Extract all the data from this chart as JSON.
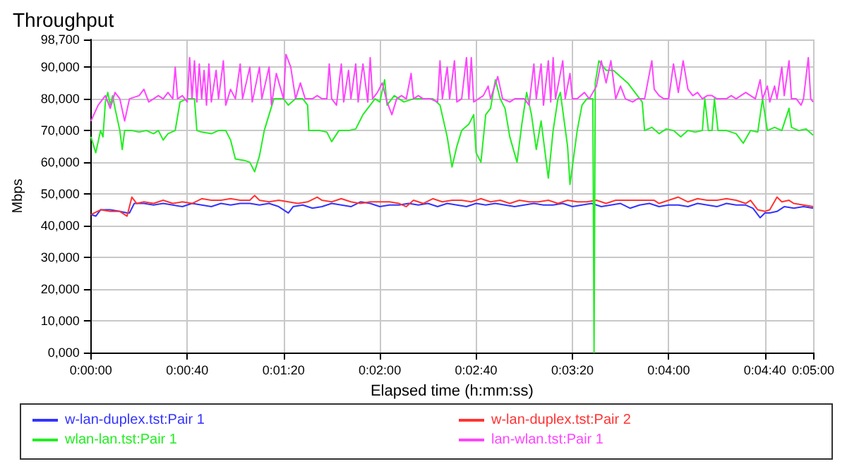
{
  "chart_data": {
    "type": "line",
    "title": "Throughput",
    "xlabel": "Elapsed time (h:mm:ss)",
    "ylabel": "Mbps",
    "xlim": [
      0,
      300
    ],
    "xticks": [
      {
        "value": 0,
        "label": "0:00:00"
      },
      {
        "value": 40,
        "label": "0:00:40"
      },
      {
        "value": 80,
        "label": "0:01:20"
      },
      {
        "value": 120,
        "label": "0:02:00"
      },
      {
        "value": 160,
        "label": "0:02:40"
      },
      {
        "value": 200,
        "label": "0:03:20"
      },
      {
        "value": 240,
        "label": "0:04:00"
      },
      {
        "value": 280,
        "label": "0:04:40"
      },
      {
        "value": 300,
        "label": "0:05:00"
      }
    ],
    "ylim": [
      0,
      98700
    ],
    "yticks": [
      {
        "value": 0,
        "label": "0,000"
      },
      {
        "value": 10000,
        "label": "10,000"
      },
      {
        "value": 20000,
        "label": "20,000"
      },
      {
        "value": 30000,
        "label": "30,000"
      },
      {
        "value": 40000,
        "label": "40,000"
      },
      {
        "value": 50000,
        "label": "50,000"
      },
      {
        "value": 60000,
        "label": "60,000"
      },
      {
        "value": 70000,
        "label": "70,000"
      },
      {
        "value": 80000,
        "label": "80,000"
      },
      {
        "value": 90000,
        "label": "90,000"
      },
      {
        "value": 98700,
        "label": "98,700"
      }
    ],
    "grid": true,
    "legend": "bottom",
    "marker": "none",
    "line_style": "solid",
    "series": [
      {
        "name": "w-lan-duplex.tst:Pair 1",
        "color": "#3333ff",
        "x": [
          0,
          2,
          4,
          8,
          12,
          15,
          16,
          18,
          22,
          26,
          30,
          34,
          38,
          42,
          46,
          50,
          54,
          58,
          62,
          66,
          70,
          74,
          78,
          80,
          82,
          84,
          88,
          92,
          96,
          100,
          104,
          108,
          112,
          116,
          120,
          124,
          128,
          132,
          136,
          140,
          144,
          148,
          152,
          156,
          160,
          164,
          168,
          172,
          176,
          180,
          184,
          188,
          192,
          196,
          200,
          204,
          208,
          212,
          216,
          220,
          224,
          228,
          232,
          236,
          240,
          244,
          248,
          252,
          256,
          260,
          264,
          268,
          272,
          275,
          278,
          280,
          282,
          285,
          288,
          292,
          296,
          300
        ],
        "values": [
          43500,
          43000,
          45000,
          45000,
          44500,
          44000,
          44000,
          47000,
          47000,
          46500,
          47000,
          46500,
          46000,
          47000,
          46500,
          46000,
          47000,
          46500,
          47000,
          47000,
          46500,
          47000,
          46000,
          45000,
          44000,
          46000,
          46500,
          45500,
          46000,
          47000,
          46500,
          46000,
          47500,
          47000,
          46000,
          46500,
          46500,
          47000,
          46500,
          47000,
          46000,
          47000,
          46500,
          46000,
          47000,
          46500,
          47000,
          46500,
          46000,
          46500,
          47000,
          46500,
          46500,
          47000,
          46000,
          46500,
          47000,
          46000,
          46500,
          47000,
          45500,
          46500,
          47000,
          46000,
          46500,
          46500,
          46000,
          47000,
          46500,
          46000,
          47000,
          46500,
          46500,
          45500,
          42500,
          44000,
          44000,
          44500,
          46000,
          45500,
          46000,
          45500
        ]
      },
      {
        "name": "w-lan-duplex.tst:Pair 2",
        "color": "#ff3333",
        "x": [
          0,
          4,
          8,
          12,
          15,
          17,
          19,
          22,
          26,
          30,
          34,
          38,
          42,
          46,
          50,
          54,
          58,
          62,
          66,
          68,
          70,
          74,
          78,
          82,
          86,
          90,
          94,
          96,
          100,
          104,
          108,
          112,
          116,
          120,
          124,
          128,
          131,
          134,
          138,
          142,
          146,
          150,
          154,
          158,
          162,
          166,
          170,
          174,
          178,
          182,
          186,
          190,
          194,
          198,
          202,
          206,
          210,
          214,
          218,
          222,
          226,
          230,
          234,
          236,
          240,
          244,
          248,
          252,
          256,
          260,
          264,
          268,
          272,
          274,
          277,
          280,
          282,
          285,
          287,
          290,
          292,
          296,
          300
        ],
        "values": [
          43500,
          45000,
          44500,
          44500,
          43000,
          49000,
          47000,
          47500,
          47000,
          48000,
          47000,
          47500,
          47000,
          48500,
          48000,
          48000,
          48500,
          48000,
          48000,
          49500,
          48000,
          47500,
          48000,
          47500,
          47000,
          47500,
          49000,
          48000,
          47500,
          48500,
          47500,
          47000,
          47500,
          47500,
          47500,
          47000,
          46000,
          48000,
          47000,
          48500,
          47500,
          48000,
          48000,
          47500,
          48500,
          47500,
          48000,
          47000,
          48000,
          47500,
          47500,
          48000,
          47000,
          48000,
          47500,
          47500,
          48000,
          47000,
          48000,
          48000,
          48000,
          48000,
          48000,
          47000,
          48000,
          49000,
          47500,
          48500,
          48000,
          48000,
          48500,
          48000,
          47000,
          48000,
          45000,
          44500,
          45000,
          49000,
          47500,
          48000,
          47000,
          46500,
          46000
        ]
      },
      {
        "name": "wlan-lan.tst:Pair 1",
        "color": "#22ee22",
        "x": [
          0,
          2,
          4,
          5,
          6,
          7,
          8,
          9,
          10,
          12,
          13,
          14,
          17,
          20,
          23,
          26,
          28,
          30,
          32,
          35,
          37,
          40,
          43,
          44,
          46,
          50,
          53,
          56,
          58,
          60,
          64,
          66,
          68,
          70,
          72,
          74,
          76,
          80,
          82,
          85,
          88,
          90,
          90.5,
          95,
          98,
          100,
          103,
          107,
          110,
          113,
          116,
          118,
          120,
          122,
          123,
          126,
          130,
          134,
          138,
          142,
          145,
          148,
          150,
          152,
          154,
          157,
          159,
          160,
          162,
          164,
          166,
          168,
          170,
          172,
          174,
          177,
          179,
          181,
          183,
          185,
          187,
          188,
          190,
          192,
          194,
          195,
          198,
          199,
          202,
          204,
          206,
          208.5,
          209,
          209.5,
          211,
          214,
          217,
          220,
          223,
          226,
          229,
          230,
          233,
          236,
          239,
          242,
          245,
          248,
          251,
          254,
          255,
          256.5,
          258,
          259,
          260.5,
          264,
          268,
          271,
          274,
          277,
          279,
          281,
          284,
          287,
          290,
          291,
          294,
          297,
          300
        ],
        "values": [
          68000,
          63000,
          70000,
          68000,
          79000,
          82000,
          78000,
          81000,
          77000,
          70000,
          64000,
          70000,
          70000,
          69500,
          70000,
          69000,
          70000,
          67000,
          69000,
          70000,
          79000,
          80000,
          80000,
          70000,
          69500,
          69000,
          70000,
          70000,
          67000,
          61000,
          60500,
          60000,
          57000,
          62000,
          70000,
          75000,
          80000,
          80000,
          78000,
          80000,
          80000,
          78000,
          70000,
          70000,
          69500,
          66500,
          70000,
          70000,
          70500,
          75000,
          78000,
          80000,
          79000,
          86000,
          78000,
          81000,
          79000,
          80000,
          80000,
          80000,
          78000,
          68000,
          58500,
          65000,
          70000,
          72000,
          75000,
          63000,
          60000,
          75000,
          77000,
          86000,
          80000,
          77000,
          68000,
          60000,
          72000,
          82000,
          75000,
          64000,
          73000,
          67000,
          55000,
          70000,
          80000,
          82000,
          65000,
          53000,
          70000,
          78000,
          80000,
          80000,
          0,
          85000,
          92000,
          89000,
          89000,
          87000,
          85000,
          82000,
          79000,
          70000,
          71000,
          69000,
          70500,
          70000,
          68000,
          70000,
          69500,
          70000,
          80000,
          70000,
          70000,
          80000,
          70000,
          70000,
          69000,
          66000,
          70000,
          69500,
          80000,
          70000,
          71000,
          70000,
          77000,
          71000,
          70000,
          70500,
          68500
        ]
      },
      {
        "name": "lan-wlan.tst:Pair 1",
        "color": "#ff44ff",
        "x": [
          0,
          3,
          6,
          8,
          10,
          12,
          14,
          16,
          20,
          22,
          24,
          28,
          30,
          32,
          34,
          35,
          36,
          38,
          40,
          41,
          42,
          43,
          44,
          45,
          46,
          47,
          48,
          49,
          50,
          52,
          53,
          55,
          56,
          58,
          60,
          62,
          63,
          66,
          67,
          70,
          71,
          74,
          75,
          77,
          80,
          81,
          83,
          85,
          87,
          89,
          92,
          94,
          96,
          98,
          99,
          100,
          102,
          104,
          105,
          107,
          108,
          110,
          111,
          113,
          115,
          116,
          117,
          119,
          121,
          123,
          125,
          127,
          129,
          131,
          133,
          134,
          136,
          138,
          141,
          144,
          145,
          146,
          148,
          149,
          151,
          152,
          154,
          156,
          157,
          158,
          159,
          161,
          163,
          165,
          166,
          169,
          171,
          174,
          176,
          180,
          182,
          184,
          185,
          187,
          188,
          190,
          191,
          192,
          193,
          196,
          197,
          199,
          200,
          202,
          205,
          207,
          210,
          212,
          214,
          216,
          218,
          220,
          222,
          225,
          227,
          230,
          233,
          234,
          236,
          238,
          240,
          242,
          244,
          246,
          248,
          250,
          252,
          254,
          256,
          258,
          260,
          264,
          266,
          268,
          272,
          276,
          278,
          279,
          281,
          282,
          284,
          285,
          287,
          288,
          290,
          291,
          293,
          295,
          296,
          298,
          299,
          300
        ],
        "values": [
          73000,
          78000,
          81000,
          77000,
          82000,
          80000,
          73000,
          80000,
          81000,
          83000,
          79000,
          81000,
          80000,
          82000,
          80000,
          90000,
          80000,
          81000,
          79000,
          93000,
          80000,
          92000,
          79000,
          91000,
          80000,
          89000,
          78000,
          91000,
          79000,
          89000,
          80000,
          92000,
          78000,
          83000,
          80000,
          91000,
          80000,
          90000,
          79000,
          90000,
          80000,
          90000,
          78000,
          88000,
          80000,
          94000,
          90000,
          80000,
          85000,
          80000,
          80000,
          81000,
          80000,
          80000,
          91000,
          80000,
          78000,
          91000,
          79000,
          89000,
          80000,
          91000,
          79000,
          91000,
          79000,
          93000,
          80000,
          82000,
          85000,
          79000,
          75000,
          80000,
          81000,
          80000,
          88000,
          80000,
          81000,
          80000,
          80000,
          79000,
          92000,
          80000,
          90000,
          80000,
          92000,
          79000,
          80000,
          93000,
          80000,
          93000,
          79000,
          80000,
          81000,
          84000,
          80000,
          87000,
          80000,
          79000,
          80000,
          80000,
          78000,
          91000,
          80000,
          91000,
          78000,
          92000,
          79000,
          93000,
          80000,
          92000,
          80000,
          88000,
          80000,
          80000,
          82000,
          80000,
          84000,
          92000,
          85000,
          92000,
          80000,
          84000,
          80000,
          79000,
          80000,
          80000,
          92000,
          83000,
          81000,
          80000,
          80000,
          91000,
          82000,
          92000,
          83000,
          81000,
          82000,
          80000,
          81000,
          81000,
          80000,
          80000,
          81000,
          80000,
          82000,
          80000,
          86000,
          80000,
          84000,
          79000,
          84000,
          80000,
          90000,
          81000,
          92000,
          80000,
          80000,
          78000,
          80000,
          93000,
          80000,
          79000
        ]
      }
    ]
  }
}
